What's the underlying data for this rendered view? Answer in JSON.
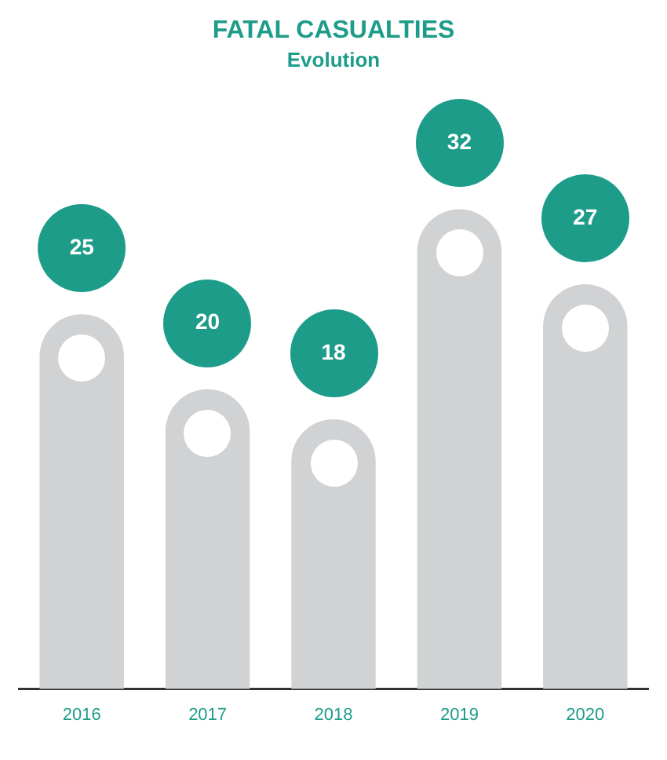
{
  "chart_data": {
    "type": "bar",
    "title": "FATAL CASUALTIES",
    "subtitle": "Evolution",
    "categories": [
      "2016",
      "2017",
      "2018",
      "2019",
      "2020"
    ],
    "values": [
      25,
      20,
      18,
      32,
      27
    ],
    "color": "#d1d2d4",
    "data_labels": true
  }
}
